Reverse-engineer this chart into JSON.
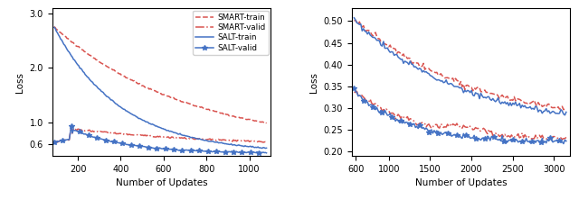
{
  "left": {
    "xlim": [
      80,
      1100
    ],
    "ylim": [
      0.38,
      3.1
    ],
    "yticks": [
      0.6,
      1.0,
      2.0,
      3.0
    ],
    "xticks": [
      200,
      400,
      600,
      800,
      1000
    ],
    "xlabel": "Number of Updates",
    "ylabel": "Loss",
    "smart_train_color": "#d9534f",
    "smart_valid_color": "#d9534f",
    "salt_train_color": "#4472c4",
    "salt_valid_color": "#4472c4",
    "legend_labels": [
      "SMART-train",
      "SMART-valid",
      "SALT-train",
      "SALT-valid"
    ]
  },
  "right": {
    "xlim": [
      550,
      3200
    ],
    "ylim": [
      0.19,
      0.53
    ],
    "yticks": [
      0.2,
      0.25,
      0.3,
      0.35,
      0.4,
      0.45,
      0.5
    ],
    "xticks": [
      600,
      1000,
      1500,
      2000,
      2500,
      3000
    ],
    "xlabel": "Number of Updates",
    "ylabel": "Loss",
    "smart_train_color": "#d9534f",
    "smart_valid_color": "#d9534f",
    "salt_train_color": "#4472c4",
    "salt_valid_color": "#4472c4"
  }
}
